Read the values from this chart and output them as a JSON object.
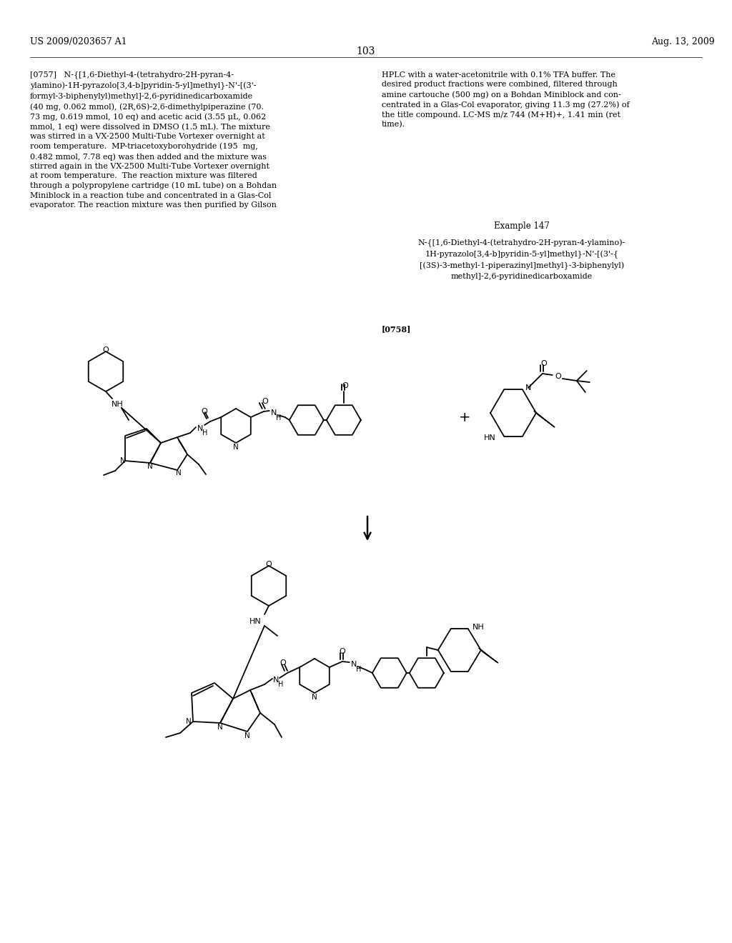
{
  "page_header_left": "US 2009/0203657 A1",
  "page_header_right": "Aug. 13, 2009",
  "page_number": "103",
  "background_color": "#ffffff",
  "left_paragraph": "[0757]   N-{[1,6-Diethyl-4-(tetrahydro-2H-pyran-4-\nylamino)-1H-pyrazolo[3,4-b]pyridin-5-yl]methyl}-N'-[(3'-\nformyl-3-biphenylyl)methyl]-2,6-pyridinedicarboxamide\n(40 mg, 0.062 mmol), (2R,6S)-2,6-dimethylpiperazine (70.\n73 mg, 0.619 mmol, 10 eq) and acetic acid (3.55 μL, 0.062\nmmol, 1 eq) were dissolved in DMSO (1.5 mL). The mixture\nwas stirred in a VX-2500 Multi-Tube Vortexer overnight at\nroom temperature.  MP-triacetoxyborohydride (195  mg,\n0.482 mmol, 7.78 eq) was then added and the mixture was\nstirred again in the VX-2500 Multi-Tube Vortexer overnight\nat room temperature.  The reaction mixture was filtered\nthrough a polypropylene cartridge (10 mL tube) on a Bohdan\nMiniblock in a reaction tube and concentrated in a Glas-Col\nevaporator. The reaction mixture was then purified by Gilson",
  "right_paragraph": "HPLC with a water-acetonitrile with 0.1% TFA buffer. The\ndesired product fractions were combined, filtered through\namine cartouche (500 mg) on a Bohdan Miniblock and con-\ncentrated in a Glas-Col evaporator, giving 11.3 mg (27.2%) of\nthe title compound. LC-MS m/z 744 (M+H)+, 1.41 min (ret\ntime).",
  "example_title": "Example 147",
  "example_name": "N-{[1,6-Diethyl-4-(tetrahydro-2H-pyran-4-ylamino)-\n1H-pyrazolo[3,4-b]pyridin-5-yl]methyl}-N'-[(3'-{\n[(3S)-3-methyl-1-piperazinyl]methyl}-3-biphenylyl)\nmethyl]-2,6-pyridinedicarboxamide",
  "ref_0758": "[0758]"
}
